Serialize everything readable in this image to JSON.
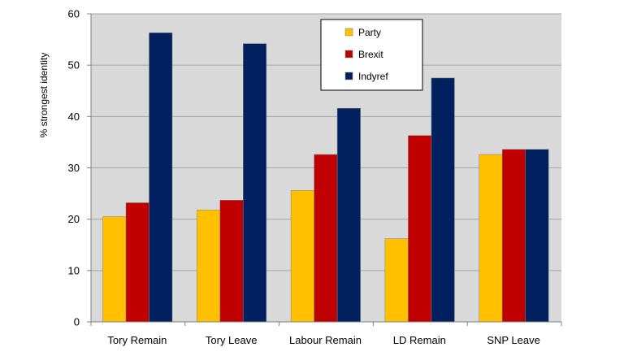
{
  "chart_data": {
    "type": "bar",
    "title": "",
    "xlabel": "",
    "ylabel": "% strongest identity",
    "ylim": [
      0,
      60
    ],
    "yticks": [
      0,
      10,
      20,
      30,
      40,
      50,
      60
    ],
    "grid": true,
    "plot_background": "#d9d9d9",
    "legend_position": "top-center",
    "categories": [
      "Tory Remain",
      "Tory Leave",
      "Labour Remain",
      "LD Remain",
      "SNP Leave"
    ],
    "series": [
      {
        "name": "Party",
        "color": "#ffc000",
        "values": [
          20.5,
          21.8,
          25.6,
          16.2,
          32.6
        ]
      },
      {
        "name": "Brexit",
        "color": "#c00000",
        "values": [
          23.2,
          23.7,
          32.6,
          36.3,
          33.6
        ]
      },
      {
        "name": "Indyref",
        "color": "#002060",
        "values": [
          56.3,
          54.2,
          41.6,
          47.5,
          33.6
        ]
      }
    ]
  }
}
